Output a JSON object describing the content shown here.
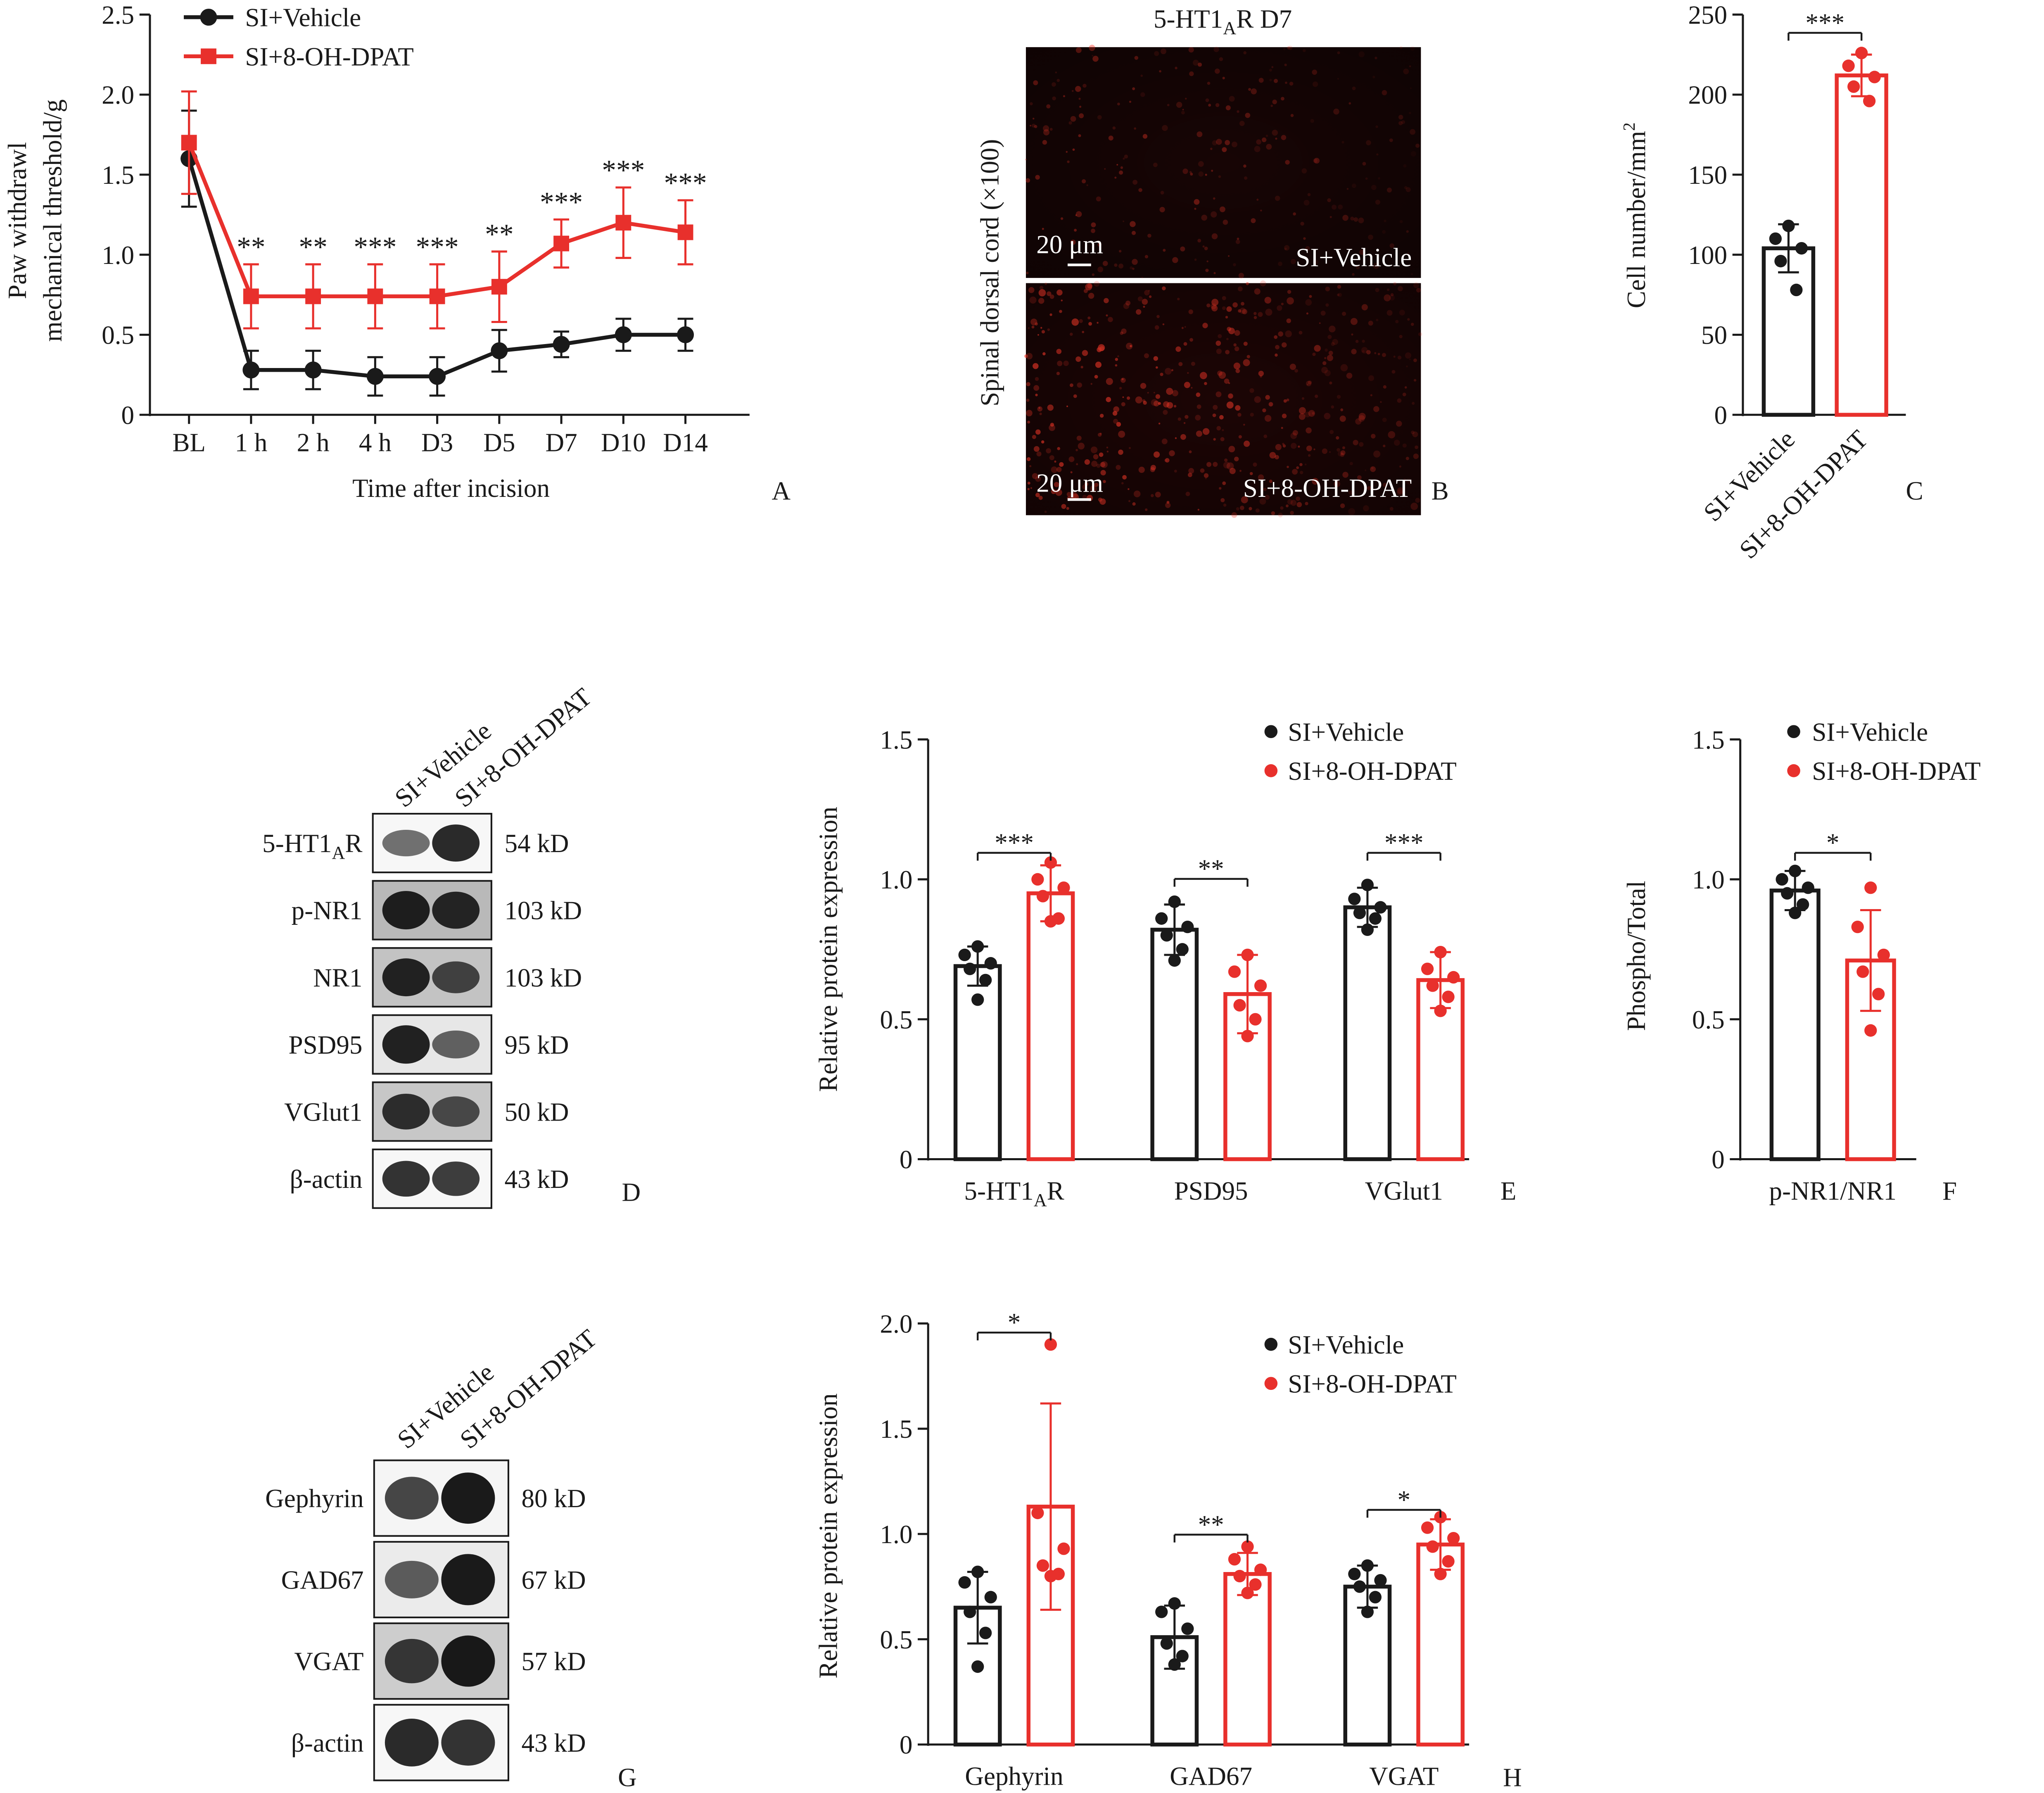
{
  "colors": {
    "vehicle": "#1a1a1a",
    "drug": "#e8302c",
    "axis": "#1a1a1a"
  },
  "legend": {
    "vehicle": "SI+Vehicle",
    "drug": "SI+8-OH-DPAT"
  },
  "panel_letters": {
    "A": "A",
    "B": "B",
    "C": "C",
    "D": "D",
    "E": "E",
    "F": "F",
    "G": "G",
    "H": "H"
  },
  "chart_data": [
    {
      "panel": "A",
      "type": "line",
      "title": "",
      "xlabel": "Time after incision",
      "ylabel_line1": "Paw withdrawl",
      "ylabel_line2": "mechanical threshold/g",
      "ylim": [
        0,
        2.5
      ],
      "yticks": [
        0,
        0.5,
        1.0,
        1.5,
        2.0,
        2.5
      ],
      "ytick_labels": [
        "0",
        "0.5",
        "1.0",
        "1.5",
        "2.0",
        "2.5"
      ],
      "categories": [
        "BL",
        "1 h",
        "2 h",
        "4 h",
        "D3",
        "D5",
        "D7",
        "D10",
        "D14"
      ],
      "series": [
        {
          "name": "SI+Vehicle",
          "values": [
            1.6,
            0.28,
            0.28,
            0.24,
            0.24,
            0.4,
            0.44,
            0.5,
            0.5
          ],
          "errors": [
            0.3,
            0.12,
            0.12,
            0.12,
            0.12,
            0.13,
            0.08,
            0.1,
            0.1
          ]
        },
        {
          "name": "SI+8-OH-DPAT",
          "values": [
            1.7,
            0.74,
            0.74,
            0.74,
            0.74,
            0.8,
            1.07,
            1.2,
            1.14
          ],
          "errors": [
            0.32,
            0.2,
            0.2,
            0.2,
            0.2,
            0.22,
            0.15,
            0.22,
            0.2
          ]
        }
      ],
      "significance": [
        "",
        "**",
        "**",
        "***",
        "***",
        "**",
        "***",
        "***",
        "***"
      ]
    },
    {
      "panel": "B",
      "type": "image",
      "title_main": "5-HT1",
      "title_sub": "A",
      "title_tail": "R D7",
      "ylabel": "Spinal dorsal cord (×100)",
      "scale_bar": "20 μm",
      "labels": [
        "SI+Vehicle",
        "SI+8-OH-DPAT"
      ]
    },
    {
      "panel": "C",
      "type": "bar",
      "ylabel": "Cell number/mm",
      "ylabel_sup": "2",
      "ylim": [
        0,
        250
      ],
      "yticks": [
        0,
        50,
        100,
        150,
        200,
        250
      ],
      "ytick_labels": [
        "0",
        "50",
        "100",
        "150",
        "200",
        "250"
      ],
      "categories": [
        "SI+Vehicle",
        "SI+8-OH-DPAT"
      ],
      "values": [
        104,
        212
      ],
      "errors": [
        15,
        13
      ],
      "points": [
        [
          118,
          110,
          104,
          96,
          78
        ],
        [
          226,
          218,
          211,
          205,
          196
        ]
      ],
      "significance": "***"
    },
    {
      "panel": "D",
      "type": "western_blot",
      "lanes": [
        "SI+Vehicle",
        "SI+8-OH-DPAT"
      ],
      "rows": [
        {
          "label": "5-HT1",
          "label_sub": "A",
          "label_tail": "R",
          "size": "54 kD",
          "bands": [
            0.45,
            0.85
          ],
          "bg": 0.04
        },
        {
          "label": "p-NR1",
          "label_sub": "",
          "label_tail": "",
          "size": "103 kD",
          "bands": [
            0.9,
            0.85
          ],
          "bg": 0.35
        },
        {
          "label": "NR1",
          "label_sub": "",
          "label_tail": "",
          "size": "103 kD",
          "bands": [
            0.88,
            0.65
          ],
          "bg": 0.3
        },
        {
          "label": "PSD95",
          "label_sub": "",
          "label_tail": "",
          "size": "95 kD",
          "bands": [
            0.9,
            0.5
          ],
          "bg": 0.12
        },
        {
          "label": "VGlut1",
          "label_sub": "",
          "label_tail": "",
          "size": "50 kD",
          "bands": [
            0.8,
            0.6
          ],
          "bg": 0.28
        },
        {
          "label": "β-actin",
          "label_sub": "",
          "label_tail": "",
          "size": "43 kD",
          "bands": [
            0.8,
            0.75
          ],
          "bg": 0.04
        }
      ]
    },
    {
      "panel": "E",
      "type": "bar",
      "ylabel": "Relative protein expression",
      "ylim": [
        0,
        1.5
      ],
      "yticks": [
        0,
        0.5,
        1.0,
        1.5
      ],
      "ytick_labels": [
        "0",
        "0.5",
        "1.0",
        "1.5"
      ],
      "categories": [
        {
          "label": "5-HT1",
          "sub": "A",
          "tail": "R"
        },
        {
          "label": "PSD95",
          "sub": "",
          "tail": ""
        },
        {
          "label": "VGlut1",
          "sub": "",
          "tail": ""
        }
      ],
      "series": [
        {
          "name": "SI+Vehicle",
          "values": [
            0.69,
            0.82,
            0.9
          ],
          "errors": [
            0.07,
            0.09,
            0.07
          ],
          "points": [
            [
              0.76,
              0.73,
              0.7,
              0.68,
              0.64,
              0.57
            ],
            [
              0.92,
              0.86,
              0.83,
              0.8,
              0.75,
              0.71
            ],
            [
              0.98,
              0.93,
              0.9,
              0.88,
              0.86,
              0.82
            ]
          ]
        },
        {
          "name": "SI+8-OH-DPAT",
          "values": [
            0.95,
            0.59,
            0.64
          ],
          "errors": [
            0.1,
            0.14,
            0.1
          ],
          "points": [
            [
              1.06,
              1.0,
              0.97,
              0.94,
              0.86,
              0.85
            ],
            [
              0.73,
              0.67,
              0.62,
              0.55,
              0.5,
              0.44
            ],
            [
              0.74,
              0.68,
              0.65,
              0.62,
              0.58,
              0.53
            ]
          ]
        }
      ],
      "significance": [
        "***",
        "**",
        "***"
      ]
    },
    {
      "panel": "F",
      "type": "bar",
      "ylabel": "Phospho/Total",
      "ylim": [
        0,
        1.5
      ],
      "yticks": [
        0,
        0.5,
        1.0,
        1.5
      ],
      "ytick_labels": [
        "0",
        "0.5",
        "1.0",
        "1.5"
      ],
      "categories": [
        "p-NR1/NR1"
      ],
      "series": [
        {
          "name": "SI+Vehicle",
          "values": [
            0.96
          ],
          "errors": [
            0.07
          ],
          "points": [
            [
              1.03,
              1.0,
              0.97,
              0.95,
              0.91,
              0.88
            ]
          ]
        },
        {
          "name": "SI+8-OH-DPAT",
          "values": [
            0.71
          ],
          "errors": [
            0.18
          ],
          "points": [
            [
              0.97,
              0.83,
              0.73,
              0.67,
              0.59,
              0.46
            ]
          ]
        }
      ],
      "significance": [
        "*"
      ]
    },
    {
      "panel": "G",
      "type": "western_blot",
      "lanes": [
        "SI+Vehicle",
        "SI+8-OH-DPAT"
      ],
      "rows": [
        {
          "label": "Gephyrin",
          "label_sub": "",
          "label_tail": "",
          "size": "80 kD",
          "bands": [
            0.7,
            0.95
          ],
          "bg": 0.05
        },
        {
          "label": "GAD67",
          "label_sub": "",
          "label_tail": "",
          "size": "67 kD",
          "bands": [
            0.55,
            0.95
          ],
          "bg": 0.1
        },
        {
          "label": "VGAT",
          "label_sub": "",
          "label_tail": "",
          "size": "57 kD",
          "bands": [
            0.75,
            0.95
          ],
          "bg": 0.25
        },
        {
          "label": "β-actin",
          "label_sub": "",
          "label_tail": "",
          "size": "43 kD",
          "bands": [
            0.85,
            0.8
          ],
          "bg": 0.04
        }
      ]
    },
    {
      "panel": "H",
      "type": "bar",
      "ylabel": "Relative protein expression",
      "ylim": [
        0,
        2.0
      ],
      "yticks": [
        0,
        0.5,
        1.0,
        1.5,
        2.0
      ],
      "ytick_labels": [
        "0",
        "0.5",
        "1.0",
        "1.5",
        "2.0"
      ],
      "categories": [
        {
          "label": "Gephyrin",
          "sub": "",
          "tail": ""
        },
        {
          "label": "GAD67",
          "sub": "",
          "tail": ""
        },
        {
          "label": "VGAT",
          "sub": "",
          "tail": ""
        }
      ],
      "series": [
        {
          "name": "SI+Vehicle",
          "values": [
            0.65,
            0.51,
            0.75
          ],
          "errors": [
            0.17,
            0.15,
            0.1
          ],
          "points": [
            [
              0.82,
              0.77,
              0.7,
              0.63,
              0.53,
              0.37
            ],
            [
              0.67,
              0.63,
              0.55,
              0.48,
              0.42,
              0.38
            ],
            [
              0.85,
              0.81,
              0.78,
              0.75,
              0.7,
              0.63
            ]
          ]
        },
        {
          "name": "SI+8-OH-DPAT",
          "values": [
            1.13,
            0.81,
            0.95
          ],
          "errors": [
            0.49,
            0.1,
            0.12
          ],
          "points": [
            [
              1.9,
              1.1,
              0.93,
              0.85,
              0.81,
              0.8
            ],
            [
              0.94,
              0.88,
              0.83,
              0.8,
              0.76,
              0.72
            ],
            [
              1.08,
              1.03,
              0.98,
              0.94,
              0.87,
              0.81
            ]
          ]
        }
      ],
      "significance": [
        "*",
        "**",
        "*"
      ]
    }
  ]
}
